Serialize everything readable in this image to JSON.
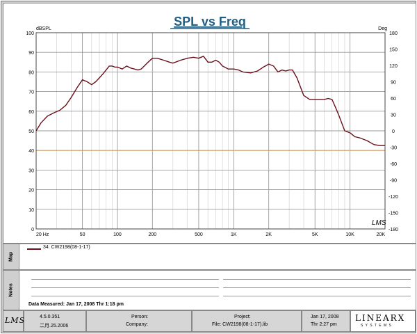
{
  "chart_data": {
    "type": "line",
    "title": "SPL vs Freq",
    "ylabel_left": "dBSPL",
    "ylabel_right": "Deg",
    "x_scale": "log",
    "xlim": [
      20,
      20000
    ],
    "ylim": [
      0,
      100
    ],
    "y2lim": [
      -180,
      180
    ],
    "grid": true,
    "x_tick_labels": [
      {
        "label": "20 Hz",
        "value": 20
      },
      {
        "label": "50",
        "value": 50
      },
      {
        "label": "100",
        "value": 100
      },
      {
        "label": "200",
        "value": 200
      },
      {
        "label": "500",
        "value": 500
      },
      {
        "label": "1K",
        "value": 1000
      },
      {
        "label": "2K",
        "value": 2000
      },
      {
        "label": "5K",
        "value": 5000
      },
      {
        "label": "10K",
        "value": 10000
      },
      {
        "label": "20K",
        "value": 20000
      }
    ],
    "y_ticks": [
      100,
      90,
      80,
      70,
      60,
      50,
      40,
      30,
      20,
      10,
      0
    ],
    "y2_ticks": [
      180,
      150,
      120,
      90,
      60,
      30,
      0,
      -30,
      -60,
      -90,
      -120,
      -150,
      -180
    ],
    "series": [
      {
        "name": "34: CW2198(08-1-17)",
        "color": "#6b0f1a",
        "x": [
          20,
          22,
          25,
          28,
          32,
          36,
          40,
          45,
          50,
          55,
          60,
          65,
          70,
          75,
          80,
          85,
          90,
          95,
          100,
          110,
          120,
          130,
          140,
          150,
          160,
          180,
          200,
          220,
          250,
          280,
          300,
          350,
          400,
          450,
          500,
          550,
          600,
          650,
          700,
          750,
          800,
          900,
          1000,
          1100,
          1200,
          1400,
          1600,
          1800,
          2000,
          2200,
          2400,
          2600,
          2800,
          3000,
          3200,
          3500,
          4000,
          4500,
          5000,
          5500,
          6000,
          6500,
          7000,
          7500,
          8000,
          9000,
          10000,
          11000,
          12000,
          14000,
          16000,
          18000,
          20000
        ],
        "y": [
          50,
          54,
          57.5,
          59,
          60.5,
          63,
          67,
          72,
          76,
          75,
          73.5,
          75,
          77,
          79,
          81,
          83,
          83,
          82.5,
          82.5,
          81.5,
          83,
          82,
          81.5,
          81,
          81.5,
          84.5,
          87,
          87,
          86,
          85,
          84.5,
          86,
          87,
          87.5,
          87,
          88,
          85,
          85,
          86,
          85,
          83,
          81.5,
          81.5,
          81,
          80,
          79.5,
          80.5,
          82.5,
          84,
          83,
          80,
          81,
          80.5,
          81,
          81,
          77,
          68,
          66,
          66,
          66,
          66,
          66.5,
          66,
          62,
          58,
          50,
          49,
          47,
          46.5,
          45,
          43,
          42.5,
          42.5
        ]
      }
    ],
    "annotation": "LMS"
  },
  "panels": {
    "map_label": "Map",
    "notes_label": "Notes",
    "data_measured": "Data Measured: Jan 17, 2008   Thr   1:18 pm"
  },
  "footer": {
    "logo": "LMS",
    "version": "4.5.0.351",
    "version_date": "二月.25.2006",
    "person_label": "Person:",
    "company_label": "Company:",
    "project_label": "Project:",
    "file_label": "File: CW2198(08-1-17).lib",
    "date": "Jan 17, 2008",
    "time": "Thr   2:27 pm",
    "brand": "LINEARX",
    "brand_sub": "S Y S T E M S"
  }
}
